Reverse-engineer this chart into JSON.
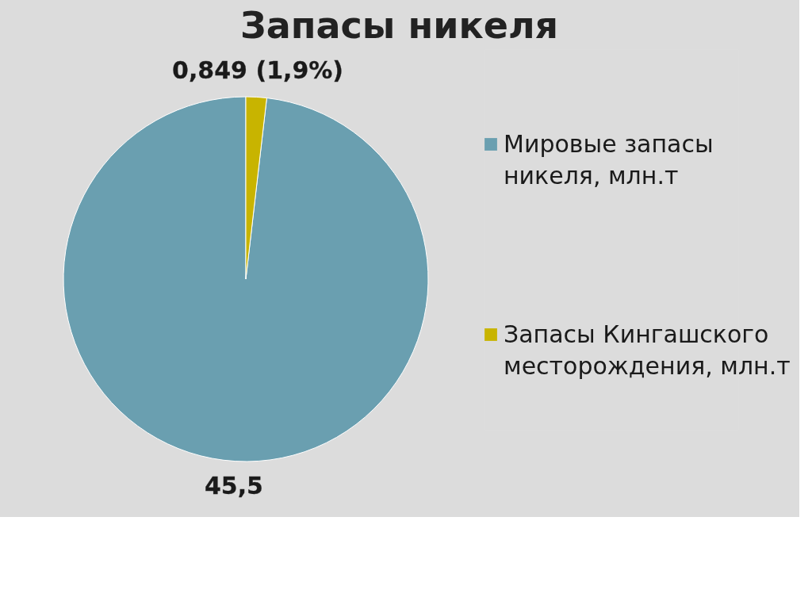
{
  "chart_data": {
    "type": "pie",
    "title": "Запасы никеля",
    "categories": [
      "Мировые запасы никеля, млн.т",
      "Запасы Кингашского месторождения, млн.т"
    ],
    "values": [
      45.5,
      0.849
    ],
    "colors": [
      "#6a9fb0",
      "#c8b400"
    ],
    "value_labels": [
      "45,5",
      "0,849 (1,9%)"
    ],
    "legend": "right"
  }
}
